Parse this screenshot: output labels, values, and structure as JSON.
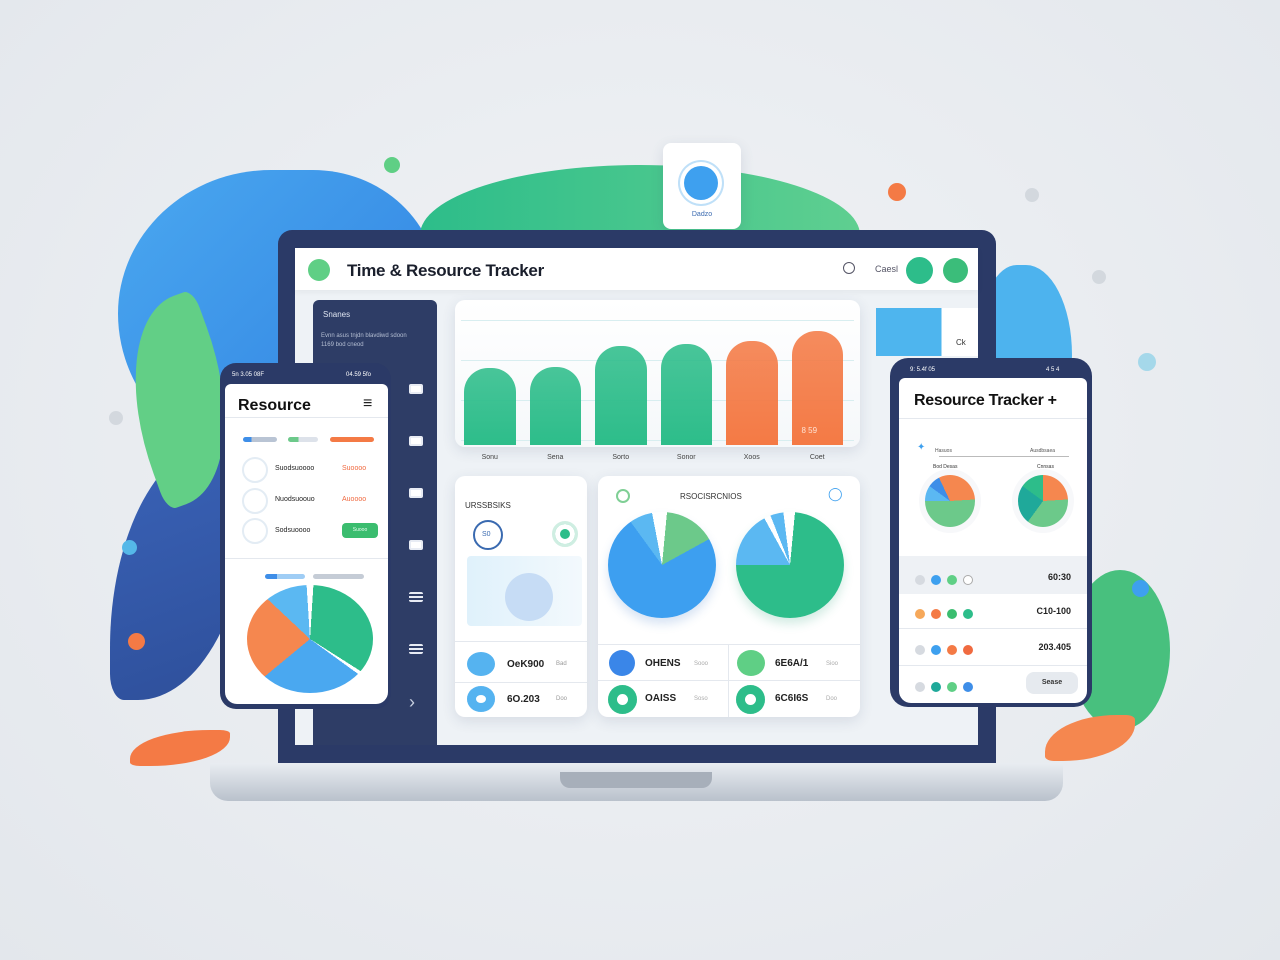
{
  "top_badge": {
    "label": "Dadzo",
    "icon": "timer-icon"
  },
  "header": {
    "title": "Time & Resource Tracker",
    "search_icon": "search-icon",
    "account_label": "Caesl"
  },
  "sidebar": {
    "heading": "Snanes",
    "desc_line1": "Evnn asus tnjdn blavdiwd sdoon",
    "desc_line2": "1169 bod cneod",
    "nav_next_icon": "chevron-right-icon"
  },
  "bar_chart": {
    "categories": [
      "Sonu",
      "Sena",
      "Sorto",
      "Sonor",
      "Xoos",
      "Coet"
    ],
    "values_percent": [
      56,
      57,
      72,
      74,
      76,
      83
    ],
    "colors": [
      "#2dbd8a",
      "#2dbd8a",
      "#2dbd8a",
      "#2dbd8a",
      "#f47a45",
      "#f47a45"
    ],
    "bar_label": "8 59"
  },
  "side_panel": {
    "label": "Ck"
  },
  "card_left": {
    "title": "URSSBSIKS",
    "badge": "S0",
    "rows": [
      {
        "value": "OeK900",
        "unit": "Bad"
      },
      {
        "value": "6O.203",
        "unit": "Doo"
      }
    ]
  },
  "card_mid": {
    "title": "RSOCISRCNIOS",
    "stats": [
      {
        "value": "OHENS",
        "unit": "Sooo"
      },
      {
        "value": "6E6A/1",
        "unit": "Sioo"
      },
      {
        "value": "OAISS",
        "unit": "Soso"
      },
      {
        "value": "6C6I6S",
        "unit": "Doo"
      }
    ]
  },
  "phone_left": {
    "status_left": "5n 3.05 08F",
    "status_right": "04.59 5fo",
    "title": "Resource",
    "menu_icon": "hamburger-icon",
    "rows": [
      {
        "name": "Suodsuoooo",
        "value": "Suoooo"
      },
      {
        "name": "Nuodsuoouo",
        "value": "Auoooo"
      },
      {
        "name": "Sodsuoooo",
        "button": "Suooo"
      }
    ]
  },
  "phone_right": {
    "status_left": "9: 5.4f 05",
    "status_right": "4 5 4",
    "title": "Resource Tracker +",
    "legend_left": "Hasuos",
    "legend_right": "Ausdbsaea",
    "pie_label_left": "Bod Desas",
    "pie_label_right": "Cnnsas",
    "rows": [
      {
        "value": "60:30"
      },
      {
        "value": "C10-100"
      },
      {
        "value": "203.405"
      },
      {
        "button": "Sease"
      }
    ]
  },
  "colors": {
    "navy": "#2b3a67",
    "green": "#2dbd8a",
    "orange": "#f47a45",
    "blue": "#3ea0ef"
  }
}
